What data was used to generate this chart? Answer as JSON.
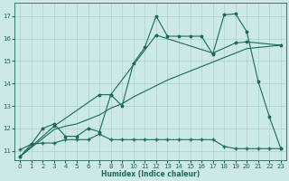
{
  "xlabel": "Humidex (Indice chaleur)",
  "xlim": [
    -0.5,
    23.5
  ],
  "ylim": [
    10.6,
    17.6
  ],
  "yticks": [
    11,
    12,
    13,
    14,
    15,
    16,
    17
  ],
  "xticks": [
    0,
    1,
    2,
    3,
    4,
    5,
    6,
    7,
    8,
    9,
    10,
    11,
    12,
    13,
    14,
    15,
    16,
    17,
    18,
    19,
    20,
    21,
    22,
    23
  ],
  "bg_color": "#cce8e8",
  "line_color": "#1a6b5a",
  "grid_color": "#aad0d0",
  "line_jagged_x": [
    0,
    1,
    2,
    3,
    4,
    5,
    6,
    7,
    8,
    9,
    10,
    11,
    12,
    13,
    14,
    15,
    16,
    17,
    18,
    19,
    20,
    21,
    22,
    23
  ],
  "line_jagged_y": [
    10.75,
    11.3,
    12.0,
    12.2,
    11.65,
    11.65,
    12.0,
    11.85,
    13.5,
    13.0,
    14.9,
    15.6,
    17.0,
    16.1,
    16.1,
    16.1,
    16.1,
    15.3,
    17.05,
    17.1,
    16.3,
    14.1,
    12.5,
    11.1
  ],
  "line_diag1_x": [
    0,
    1,
    2,
    3,
    4,
    5,
    6,
    7,
    8,
    9,
    10,
    11,
    12,
    13,
    14,
    15,
    16,
    17,
    18,
    19,
    20,
    21,
    22,
    23
  ],
  "line_diag1_y": [
    10.75,
    11.15,
    11.55,
    11.95,
    12.1,
    12.2,
    12.4,
    12.6,
    12.9,
    13.1,
    13.4,
    13.65,
    13.9,
    14.15,
    14.35,
    14.55,
    14.75,
    14.95,
    15.15,
    15.35,
    15.55,
    15.6,
    15.65,
    15.7
  ],
  "line_diag2_x": [
    0,
    3,
    7,
    8,
    12,
    17,
    19,
    20,
    23
  ],
  "line_diag2_y": [
    10.75,
    12.1,
    13.5,
    13.5,
    16.15,
    15.35,
    15.8,
    15.85,
    15.7
  ],
  "line_flat_x": [
    0,
    1,
    2,
    3,
    4,
    5,
    6,
    7,
    8,
    9,
    10,
    11,
    12,
    13,
    14,
    15,
    16,
    17,
    18,
    19,
    20,
    21,
    22,
    23
  ],
  "line_flat_y": [
    11.05,
    11.3,
    11.35,
    11.35,
    11.5,
    11.5,
    11.5,
    11.75,
    11.5,
    11.5,
    11.5,
    11.5,
    11.5,
    11.5,
    11.5,
    11.5,
    11.5,
    11.5,
    11.2,
    11.1,
    11.1,
    11.1,
    11.1,
    11.1
  ]
}
